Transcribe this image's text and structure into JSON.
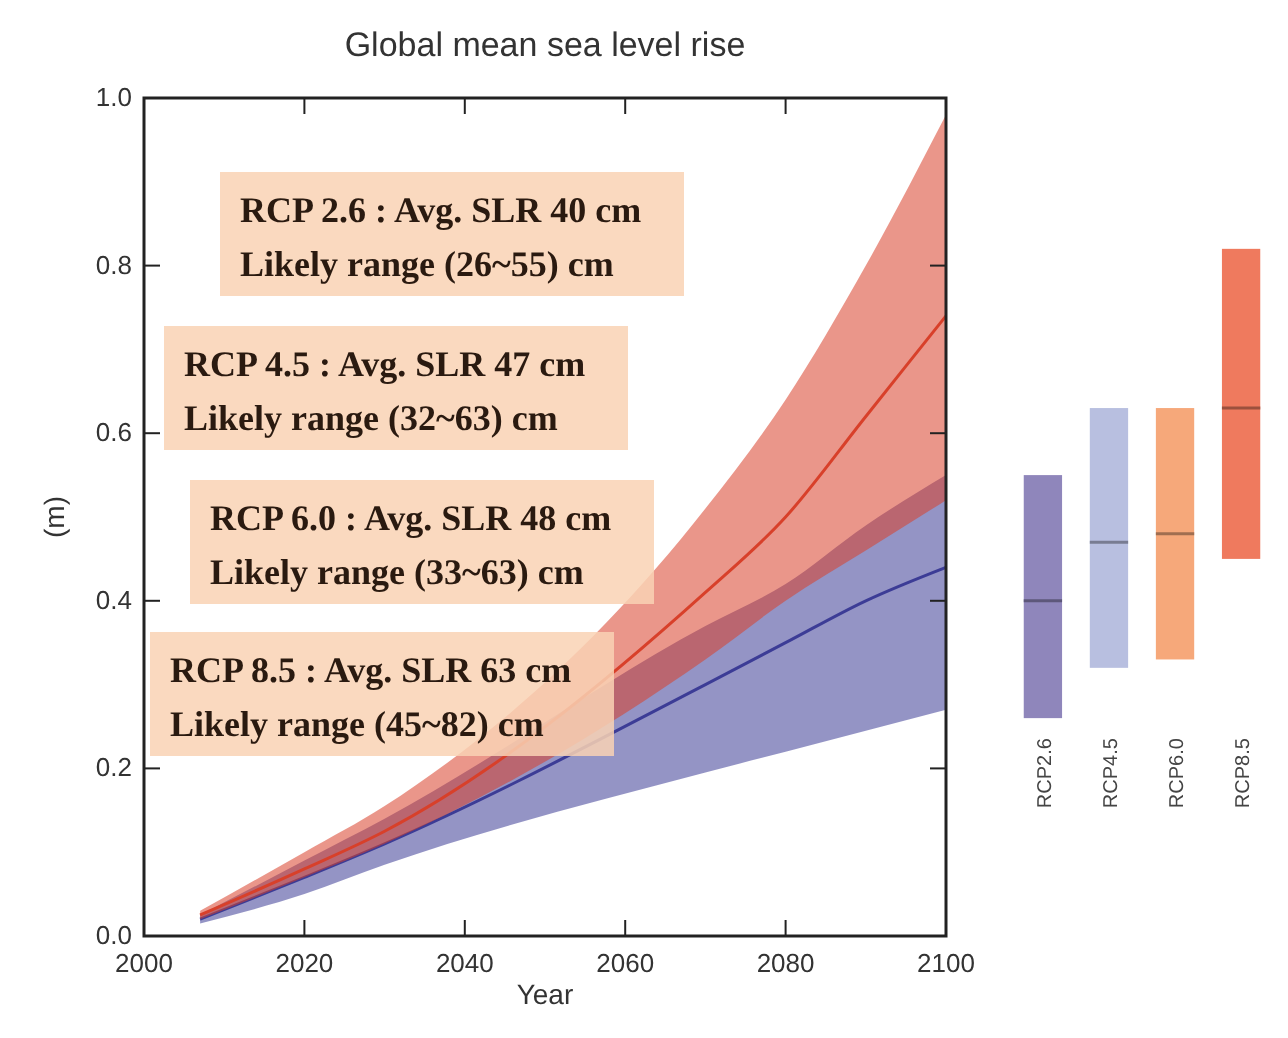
{
  "chart_data": [
    {
      "type": "line",
      "title": "Global mean sea level rise",
      "xlabel": "Year",
      "ylabel": "(m)",
      "x": [
        2007,
        2020,
        2030,
        2070,
        2080,
        2090,
        2100
      ],
      "series": [
        {
          "color": "#3c3c96",
          "values": [
            0.02,
            0.07,
            0.11,
            0.3,
            0.35,
            0.4,
            0.44
          ],
          "lower": [
            0.015,
            0.05,
            0.085,
            0.195,
            0.22,
            0.245,
            0.27
          ],
          "upper": [
            0.025,
            0.09,
            0.14,
            0.37,
            0.42,
            0.49,
            0.55
          ]
        },
        {
          "color": "#d8402a",
          "values": [
            0.025,
            0.08,
            0.125,
            0.41,
            0.5,
            0.62,
            0.74
          ],
          "lower": [
            0.02,
            0.07,
            0.11,
            0.33,
            0.4,
            0.46,
            0.52
          ],
          "upper": [
            0.03,
            0.1,
            0.155,
            0.51,
            0.64,
            0.8,
            0.98
          ]
        }
      ],
      "xlim": [
        2000,
        2100
      ],
      "xticks": [
        2000,
        2020,
        2040,
        2060,
        2080,
        2100
      ],
      "ylim": [
        0,
        1
      ],
      "yticks": [
        {
          "value": 0,
          "label": "0.0"
        },
        0.2,
        0.4,
        0.6,
        0.8,
        {
          "value": 1,
          "label": "1.0"
        }
      ],
      "annotations": [
        "RCP 2.6 : Avg. SLR 40 cm",
        "Likely range (26~55) cm",
        "RCP 4.5 : Avg. SLR 47 cm",
        "Likely range (32~63) cm",
        "RCP 6.0 : Avg. SLR 48 cm",
        "Likely range (33~63) cm",
        "RCP 8.5 : Avg. SLR 63 cm",
        "Likely range (45~82) cm"
      ]
    },
    {
      "type": "box",
      "categories": [
        "RCP2.6",
        "RCP4.5",
        "RCP6.0",
        "RCP8.5"
      ],
      "colors": [
        "#8f86bb",
        "#b8bfe0",
        "#f6a87a",
        "#ef7a5e"
      ],
      "boxes": [
        {
          "low": 0.26,
          "q1": 0.26,
          "median": 0.4,
          "q3": 0.55,
          "high": 0.55
        },
        {
          "low": 0.32,
          "q1": 0.32,
          "median": 0.47,
          "q3": 0.63,
          "high": 0.63
        },
        {
          "low": 0.33,
          "q1": 0.33,
          "median": 0.48,
          "q3": 0.63,
          "high": 0.63
        },
        {
          "low": 0.45,
          "q1": 0.45,
          "median": 0.63,
          "q3": 0.82,
          "high": 0.82
        }
      ],
      "ylim": [
        0,
        1
      ],
      "tick_labels": "x"
    }
  ]
}
